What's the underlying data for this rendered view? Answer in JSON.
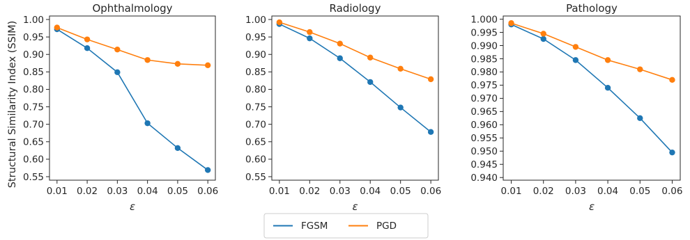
{
  "ylabel": "Structural Similarity Index (SSIM)",
  "legend": {
    "placement": "bottom-center",
    "items": [
      {
        "name": "FGSM",
        "color": "#1f77b4"
      },
      {
        "name": "PGD",
        "color": "#ff7f0e"
      }
    ]
  },
  "chart_data": [
    {
      "type": "line",
      "title": "Ophthalmology",
      "xlabel": "ε",
      "x": [
        0.01,
        0.02,
        0.03,
        0.04,
        0.05,
        0.06
      ],
      "xticks": [
        "0.01",
        "0.02",
        "0.03",
        "0.04",
        "0.05",
        "0.06"
      ],
      "ylim": [
        0.54,
        1.01
      ],
      "yticks": [
        "0.55",
        "0.60",
        "0.65",
        "0.70",
        "0.75",
        "0.80",
        "0.85",
        "0.90",
        "0.95",
        "1.00"
      ],
      "grid": false,
      "series": [
        {
          "name": "FGSM",
          "color": "#1f77b4",
          "values": [
            0.972,
            0.918,
            0.849,
            0.703,
            0.632,
            0.569
          ]
        },
        {
          "name": "PGD",
          "color": "#ff7f0e",
          "values": [
            0.977,
            0.943,
            0.914,
            0.884,
            0.873,
            0.869
          ]
        }
      ]
    },
    {
      "type": "line",
      "title": "Radiology",
      "xlabel": "ε",
      "x": [
        0.01,
        0.02,
        0.03,
        0.04,
        0.05,
        0.06
      ],
      "xticks": [
        "0.01",
        "0.02",
        "0.03",
        "0.04",
        "0.05",
        "0.06"
      ],
      "ylim": [
        0.54,
        1.01
      ],
      "yticks": [
        "0.55",
        "0.60",
        "0.65",
        "0.70",
        "0.75",
        "0.80",
        "0.85",
        "0.90",
        "0.95",
        "1.00"
      ],
      "grid": false,
      "series": [
        {
          "name": "FGSM",
          "color": "#1f77b4",
          "values": [
            0.987,
            0.946,
            0.889,
            0.821,
            0.748,
            0.678
          ]
        },
        {
          "name": "PGD",
          "color": "#ff7f0e",
          "values": [
            0.992,
            0.964,
            0.931,
            0.891,
            0.859,
            0.829
          ]
        }
      ]
    },
    {
      "type": "line",
      "title": "Pathology",
      "xlabel": "ε",
      "x": [
        0.01,
        0.02,
        0.03,
        0.04,
        0.05,
        0.06
      ],
      "xticks": [
        "0.01",
        "0.02",
        "0.03",
        "0.04",
        "0.05",
        "0.06"
      ],
      "ylim": [
        0.939,
        1.0012
      ],
      "yticks": [
        "0.940",
        "0.945",
        "0.950",
        "0.955",
        "0.960",
        "0.965",
        "0.970",
        "0.975",
        "0.980",
        "0.985",
        "0.990",
        "0.995",
        "1.000"
      ],
      "grid": false,
      "series": [
        {
          "name": "FGSM",
          "color": "#1f77b4",
          "values": [
            0.998,
            0.9925,
            0.9845,
            0.974,
            0.9625,
            0.9495
          ]
        },
        {
          "name": "PGD",
          "color": "#ff7f0e",
          "values": [
            0.9985,
            0.9945,
            0.9895,
            0.9845,
            0.981,
            0.977
          ]
        }
      ]
    }
  ]
}
